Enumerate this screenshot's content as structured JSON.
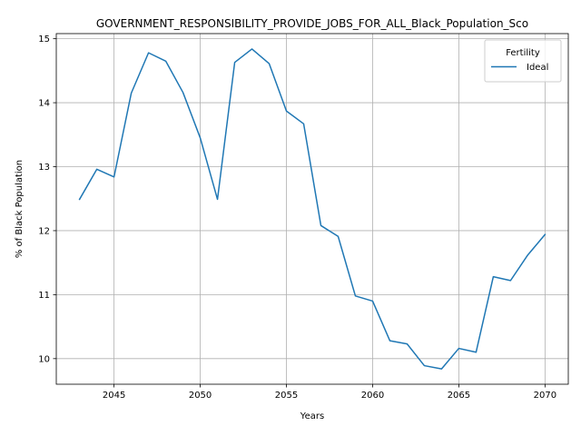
{
  "chart_data": {
    "type": "line",
    "title": "GOVERNMENT_RESPONSIBILITY_PROVIDE_JOBS_FOR_ALL_Black_Population_Sco",
    "xlabel": "Years",
    "ylabel": "% of Black Population",
    "xlim": [
      2041.65,
      2071.35
    ],
    "ylim": [
      9.6,
      15.08
    ],
    "xticks": [
      2045,
      2050,
      2055,
      2060,
      2065,
      2070
    ],
    "yticks": [
      10,
      11,
      12,
      13,
      14,
      15
    ],
    "grid": true,
    "legend": {
      "title": "Fertility",
      "position": "top-right"
    },
    "series": [
      {
        "name": "Ideal",
        "color": "#1f77b4",
        "x": [
          2043,
          2044,
          2045,
          2046,
          2047,
          2048,
          2049,
          2050,
          2051,
          2052,
          2053,
          2054,
          2055,
          2056,
          2057,
          2058,
          2059,
          2060,
          2061,
          2062,
          2063,
          2064,
          2065,
          2066,
          2067,
          2068,
          2069,
          2070
        ],
        "values": [
          12.49,
          12.96,
          12.84,
          14.15,
          14.78,
          14.65,
          14.16,
          13.45,
          12.49,
          14.63,
          14.84,
          14.61,
          13.87,
          13.67,
          12.08,
          11.91,
          10.98,
          10.9,
          10.28,
          10.23,
          9.89,
          9.84,
          10.16,
          10.1,
          11.28,
          11.22,
          11.62,
          11.94
        ]
      }
    ]
  }
}
